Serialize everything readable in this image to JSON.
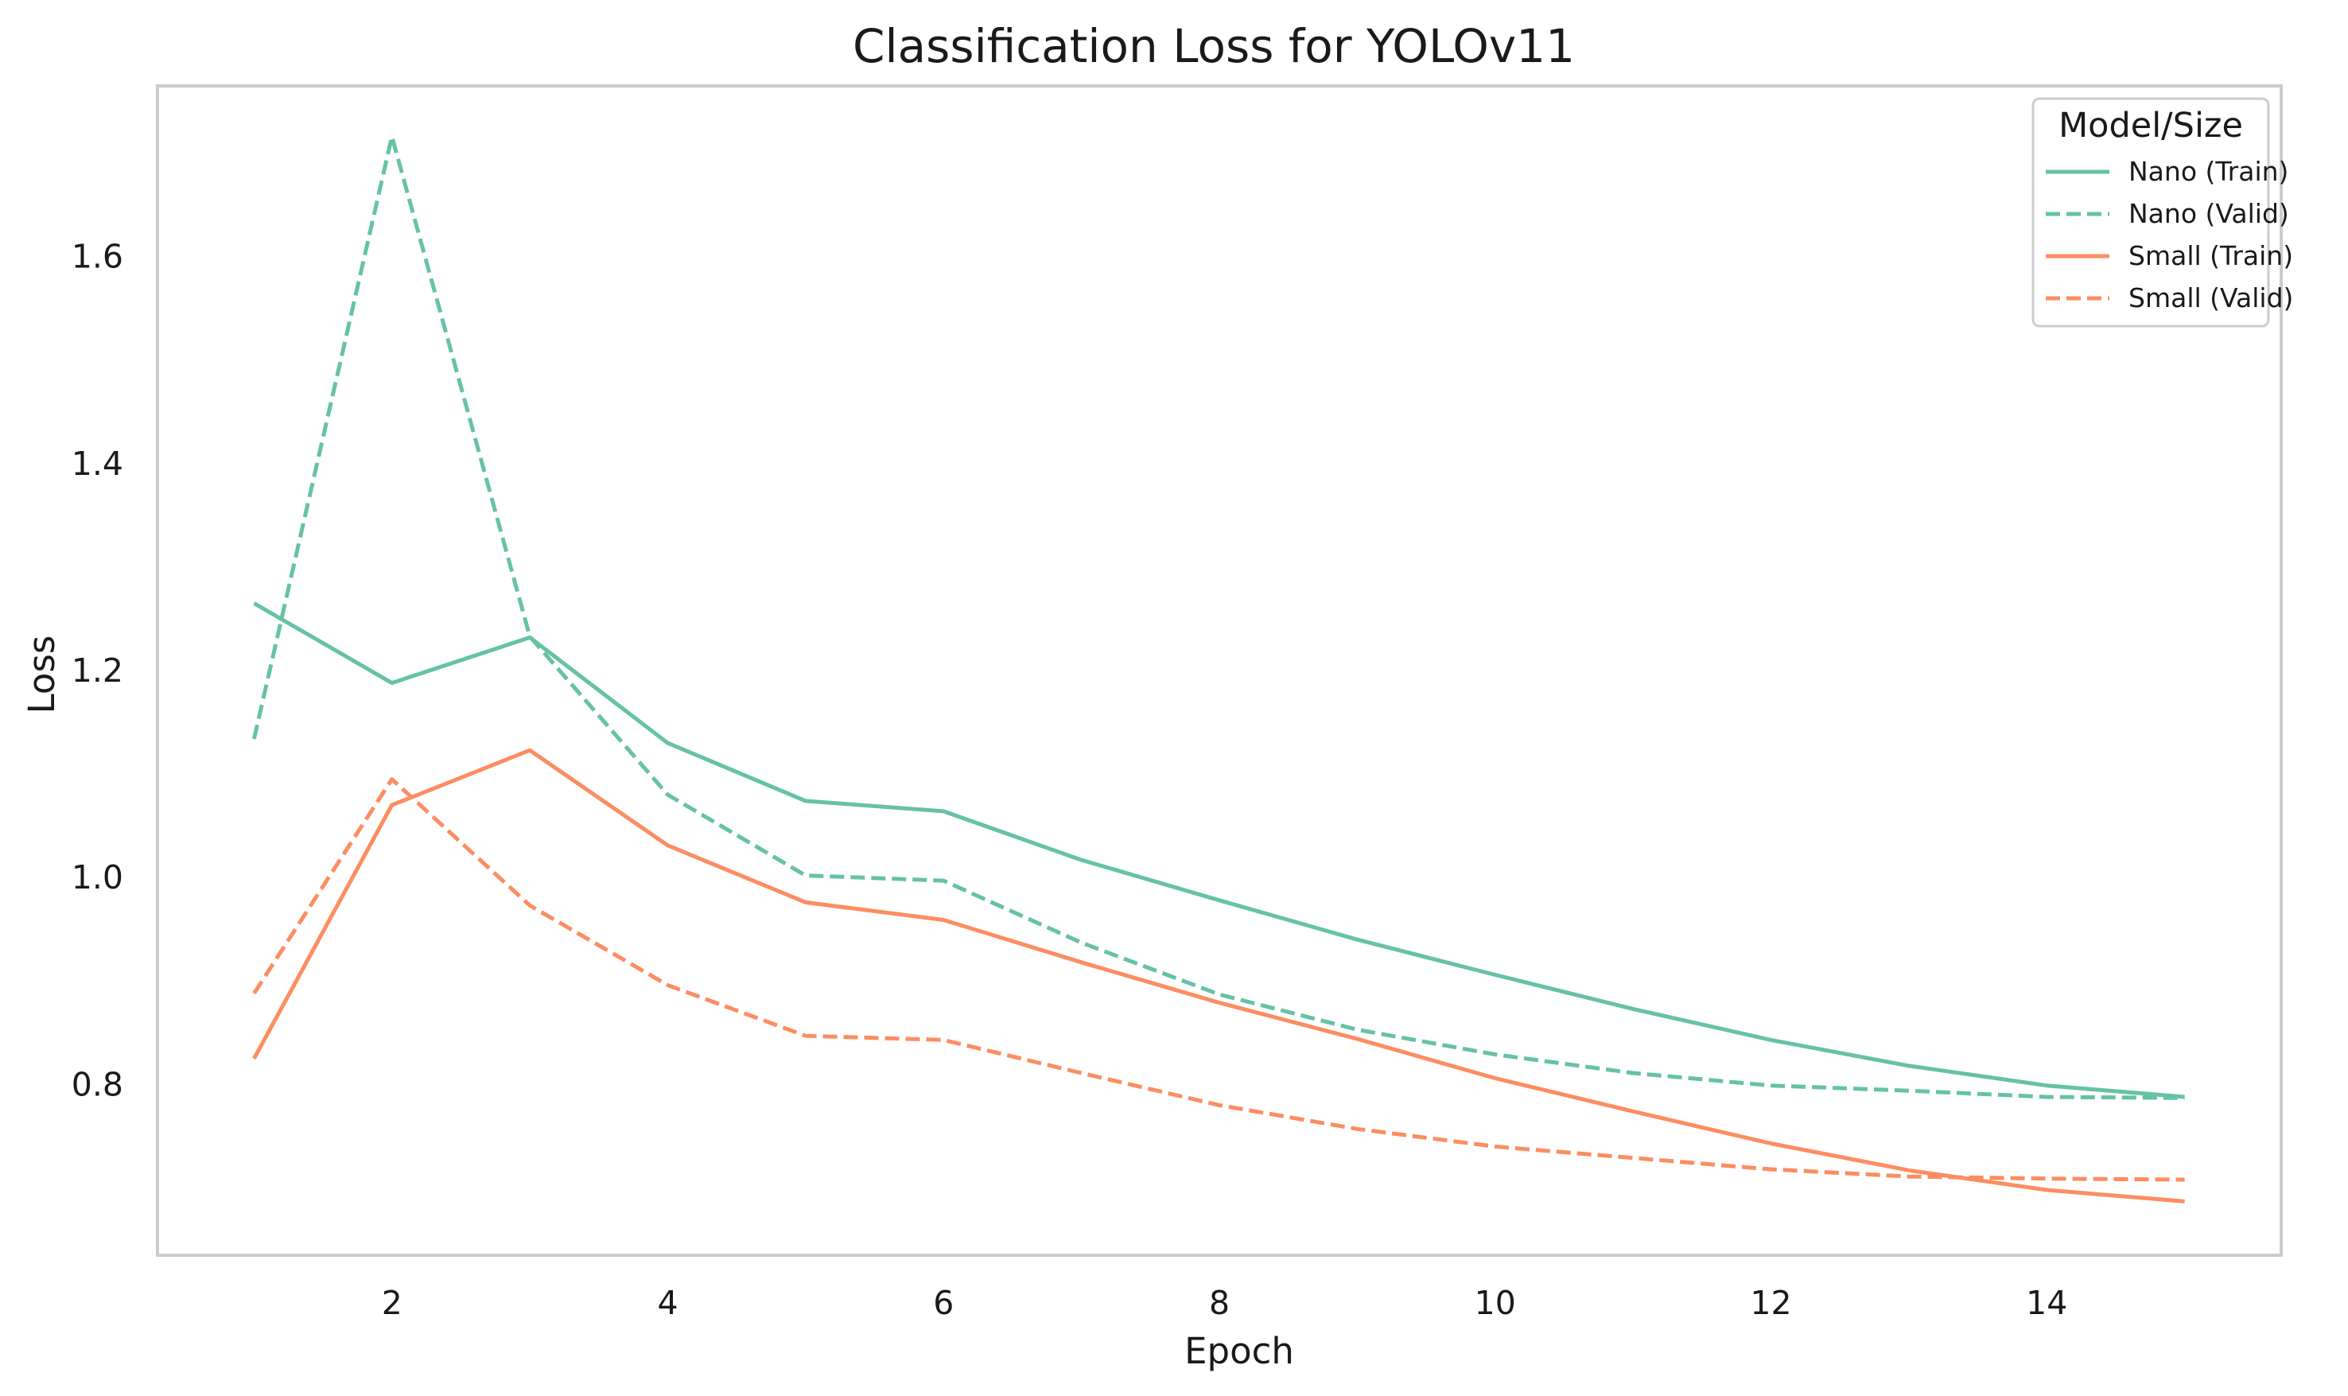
{
  "chart_data": {
    "type": "line",
    "title": "Classification Loss for YOLOv11",
    "xlabel": "Epoch",
    "ylabel": "Loss",
    "xlim": [
      0.3,
      15.7
    ],
    "ylim": [
      0.635,
      1.765
    ],
    "xticks": [
      2,
      4,
      6,
      8,
      10,
      12,
      14
    ],
    "yticks": [
      0.8,
      1.0,
      1.2,
      1.4,
      1.6
    ],
    "grid": false,
    "legend": {
      "title": "Model/Size",
      "placement": "top-right"
    },
    "x": [
      1,
      2,
      3,
      4,
      5,
      6,
      7,
      8,
      9,
      10,
      11,
      12,
      13,
      14,
      15
    ],
    "series": [
      {
        "name": "Nano (Train)",
        "color": "#66c2a5",
        "dash": "solid",
        "values": [
          1.265,
          1.188,
          1.232,
          1.13,
          1.074,
          1.064,
          1.017,
          0.978,
          0.94,
          0.906,
          0.873,
          0.843,
          0.818,
          0.799,
          0.788
        ]
      },
      {
        "name": "Nano (Valid)",
        "color": "#66c2a5",
        "dash": "dashed",
        "values": [
          1.134,
          1.716,
          1.233,
          1.08,
          1.002,
          0.997,
          0.937,
          0.887,
          0.853,
          0.829,
          0.811,
          0.799,
          0.794,
          0.788,
          0.787
        ]
      },
      {
        "name": "Small (Train)",
        "color": "#fc8d62",
        "dash": "solid",
        "values": [
          0.825,
          1.07,
          1.123,
          1.031,
          0.976,
          0.959,
          0.918,
          0.879,
          0.844,
          0.806,
          0.774,
          0.743,
          0.717,
          0.698,
          0.687
        ]
      },
      {
        "name": "Small (Valid)",
        "color": "#fc8d62",
        "dash": "dashed",
        "values": [
          0.888,
          1.095,
          0.973,
          0.896,
          0.847,
          0.843,
          0.811,
          0.78,
          0.757,
          0.74,
          0.729,
          0.718,
          0.711,
          0.709,
          0.708
        ]
      }
    ]
  }
}
